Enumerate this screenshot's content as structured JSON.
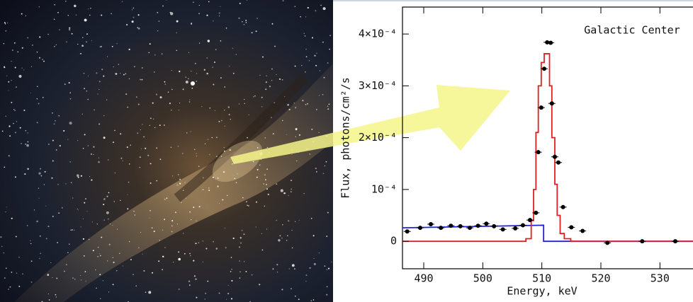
{
  "chart_data": {
    "type": "scatter",
    "annotation": "Galactic Center",
    "x_label": "Energy, keV",
    "y_label": "Flux, photons/cm²/s",
    "xlim": [
      486.4,
      535.6
    ],
    "ylim": [
      -5.3e-05,
      0.000452
    ],
    "xticks": [
      490,
      500,
      510,
      520,
      530
    ],
    "yticks": [
      0,
      {
        "value": 0.0001,
        "label": "10⁻⁴"
      },
      {
        "value": 0.0002,
        "label": "2×10⁻⁴"
      },
      {
        "value": 0.0003,
        "label": "3×10⁻⁴"
      },
      {
        "value": 0.0004,
        "label": "4×10⁻⁴"
      }
    ],
    "points": {
      "color": "#000000",
      "x": [
        487.2,
        489.4,
        491.2,
        492.9,
        494.6,
        496.2,
        497.8,
        499.2,
        500.6,
        501.9,
        503.4,
        505.5,
        506.8,
        508.0,
        509.0,
        509.4,
        509.9,
        510.4,
        510.9,
        511.5,
        511.7,
        512.2,
        512.8,
        513.6,
        515.0,
        516.9,
        521.1,
        527.0,
        532.6
      ],
      "values": [
        1.9e-05,
        2.6e-05,
        3.3e-05,
        2.6e-05,
        3e-05,
        2.9e-05,
        2.6e-05,
        3e-05,
        3.4e-05,
        2.9e-05,
        2.3e-05,
        2.5e-05,
        3.1e-05,
        4.1e-05,
        5.5e-05,
        0.000172,
        0.000258,
        0.000333,
        0.000384,
        0.000383,
        0.000266,
        0.000163,
        0.000152,
        6.6e-05,
        2.7e-05,
        2e-05,
        -3e-06,
        0,
        0
      ]
    },
    "model": {
      "color": "#e02020",
      "x": [
        486.4,
        507.3,
        507.3,
        508.2,
        508.2,
        508.6,
        508.6,
        509.0,
        509.0,
        509.4,
        509.4,
        509.9,
        509.9,
        510.4,
        510.4,
        511.3,
        511.3,
        511.7,
        511.7,
        512.2,
        512.2,
        512.6,
        512.6,
        513.1,
        513.1,
        513.8,
        513.8,
        514.9,
        514.9,
        535.6
      ],
      "values": [
        0,
        0,
        5e-06,
        5e-06,
        4e-05,
        4e-05,
        0.0001,
        0.0001,
        0.00021,
        0.00021,
        0.0003,
        0.0003,
        0.000345,
        0.000345,
        0.000362,
        0.000362,
        0.0003,
        0.0003,
        0.0002,
        0.0002,
        0.00011,
        0.00011,
        5e-05,
        5e-05,
        1.5e-05,
        1.5e-05,
        5e-06,
        5e-06,
        0,
        0
      ]
    },
    "continuum": {
      "color": "#2020e0",
      "x": [
        486.4,
        510.3,
        510.3,
        535.6
      ],
      "values": [
        2.6e-05,
        3.1e-05,
        0,
        0
      ]
    }
  }
}
